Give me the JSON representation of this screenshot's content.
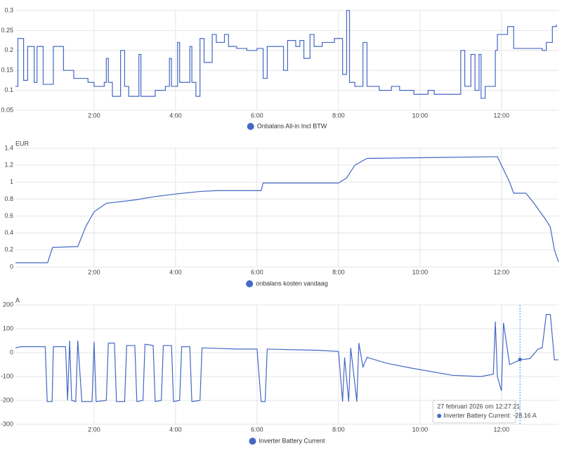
{
  "chart_data": [
    {
      "type": "line",
      "step": true,
      "grid": true,
      "x": [
        0.07,
        0.13,
        0.27,
        0.37,
        0.53,
        0.6,
        0.75,
        1.0,
        1.25,
        1.5,
        1.85,
        2.0,
        2.25,
        2.3,
        2.35,
        2.45,
        2.65,
        2.75,
        2.85,
        3.1,
        3.15,
        3.3,
        3.5,
        3.75,
        3.85,
        3.9,
        4.05,
        4.1,
        4.35,
        4.4,
        4.5,
        4.6,
        4.7,
        4.9,
        5.0,
        5.2,
        5.3,
        5.5,
        5.75,
        6.0,
        6.15,
        6.25,
        6.5,
        6.65,
        6.75,
        6.95,
        7.05,
        7.15,
        7.3,
        7.4,
        7.6,
        7.75,
        7.9,
        8.1,
        8.2,
        8.27,
        8.4,
        8.6,
        8.7,
        9.0,
        9.3,
        9.5,
        9.7,
        9.85,
        10.2,
        10.35,
        10.6,
        10.9,
        11.0,
        11.1,
        11.25,
        11.35,
        11.45,
        11.5,
        11.6,
        11.85,
        11.9,
        12.15,
        12.3,
        13.0,
        13.1,
        13.25,
        13.35
      ],
      "xlim": [
        0.07,
        13.4
      ],
      "xticks": [
        {
          "value": 2,
          "label": "2:00"
        },
        {
          "value": 4,
          "label": "4:00"
        },
        {
          "value": 6,
          "label": "6:00"
        },
        {
          "value": 8,
          "label": "8:00"
        },
        {
          "value": 10,
          "label": "10:00"
        },
        {
          "value": 12,
          "label": "12:00"
        }
      ],
      "ylim": [
        0.05,
        0.3
      ],
      "yticks": [
        0.05,
        0.1,
        0.15,
        0.2,
        0.25,
        0.3
      ],
      "series": [
        {
          "name": "Onbalans All-in Incl BTW",
          "color": "#4468c4",
          "values": [
            0.11,
            0.23,
            0.125,
            0.21,
            0.12,
            0.21,
            0.115,
            0.21,
            0.15,
            0.13,
            0.12,
            0.11,
            0.12,
            0.18,
            0.12,
            0.085,
            0.2,
            0.11,
            0.085,
            0.19,
            0.085,
            0.085,
            0.1,
            0.11,
            0.18,
            0.11,
            0.22,
            0.12,
            0.21,
            0.12,
            0.085,
            0.23,
            0.17,
            0.24,
            0.22,
            0.24,
            0.21,
            0.205,
            0.2,
            0.205,
            0.13,
            0.21,
            0.21,
            0.15,
            0.225,
            0.21,
            0.225,
            0.18,
            0.24,
            0.21,
            0.22,
            0.22,
            0.23,
            0.14,
            0.3,
            0.12,
            0.11,
            0.22,
            0.11,
            0.1,
            0.11,
            0.1,
            0.1,
            0.09,
            0.1,
            0.09,
            0.09,
            0.09,
            0.2,
            0.11,
            0.19,
            0.1,
            0.19,
            0.08,
            0.11,
            0.2,
            0.24,
            0.26,
            0.205,
            0.2,
            0.22,
            0.26,
            0.265
          ]
        }
      ]
    },
    {
      "type": "line",
      "grid": true,
      "y_unit": "EUR",
      "x": [
        0.07,
        0.86,
        0.98,
        1.6,
        1.8,
        2.0,
        2.3,
        3.0,
        3.5,
        4.0,
        4.6,
        5.0,
        6.1,
        6.15,
        8.0,
        8.2,
        8.4,
        8.7,
        11.9,
        12.2,
        12.3,
        12.6,
        12.8,
        13.1,
        13.2,
        13.3,
        13.4
      ],
      "xlim": [
        0.07,
        13.4
      ],
      "xticks": [
        {
          "value": 2,
          "label": "2:00"
        },
        {
          "value": 4,
          "label": "4:00"
        },
        {
          "value": 6,
          "label": "6:00"
        },
        {
          "value": 8,
          "label": "8:00"
        },
        {
          "value": 10,
          "label": "10:00"
        },
        {
          "value": 12,
          "label": "12:00"
        }
      ],
      "ylim": [
        0,
        1.4
      ],
      "yticks": [
        0,
        0.2,
        0.4,
        0.6,
        0.8,
        1,
        1.2,
        1.4
      ],
      "series": [
        {
          "name": "onbalans kosten vandaag",
          "color": "#4468c4",
          "values": [
            0.05,
            0.05,
            0.23,
            0.24,
            0.48,
            0.65,
            0.75,
            0.79,
            0.83,
            0.86,
            0.89,
            0.9,
            0.9,
            0.99,
            0.99,
            1.05,
            1.2,
            1.28,
            1.3,
            1.0,
            0.87,
            0.87,
            0.75,
            0.55,
            0.47,
            0.2,
            0.06
          ]
        }
      ]
    },
    {
      "type": "line",
      "grid": true,
      "y_unit": "A",
      "x": [
        0.07,
        0.2,
        0.8,
        0.85,
        0.97,
        1.0,
        1.3,
        1.35,
        1.4,
        1.45,
        1.55,
        1.6,
        1.7,
        1.95,
        2.0,
        2.05,
        2.3,
        2.35,
        2.5,
        2.55,
        2.75,
        2.8,
        3.0,
        3.05,
        3.2,
        3.25,
        3.45,
        3.5,
        3.65,
        3.7,
        3.9,
        3.95,
        4.1,
        4.15,
        4.35,
        4.4,
        4.6,
        4.65,
        5.5,
        6.0,
        6.1,
        6.2,
        6.25,
        7.5,
        8.0,
        8.1,
        8.15,
        8.25,
        8.3,
        8.45,
        8.5,
        8.6,
        8.7,
        9.2,
        9.8,
        10.3,
        10.8,
        11.5,
        11.8,
        11.85,
        11.9,
        12.0,
        12.05,
        12.2,
        12.46,
        12.7,
        12.9,
        13.0,
        13.1,
        13.2,
        13.3,
        13.4
      ],
      "xlim": [
        0.07,
        13.4
      ],
      "xticks": [
        {
          "value": 2,
          "label": "2:00"
        },
        {
          "value": 4,
          "label": "4:00"
        },
        {
          "value": 6,
          "label": "6:00"
        },
        {
          "value": 8,
          "label": "8:00"
        },
        {
          "value": 10,
          "label": "10:00"
        },
        {
          "value": 12,
          "label": "12:00"
        }
      ],
      "ylim": [
        -300,
        200
      ],
      "yticks": [
        -300,
        -200,
        -100,
        0,
        100,
        200
      ],
      "series": [
        {
          "name": "Inverter Battery Current",
          "color": "#4468c4",
          "values": [
            20,
            25,
            25,
            -205,
            -205,
            25,
            25,
            -200,
            50,
            -200,
            -205,
            50,
            -205,
            -205,
            45,
            -205,
            -200,
            40,
            40,
            -205,
            -205,
            30,
            30,
            -205,
            -200,
            35,
            30,
            -205,
            -200,
            30,
            30,
            -205,
            -200,
            25,
            25,
            -205,
            -200,
            20,
            15,
            15,
            -205,
            -205,
            15,
            10,
            5,
            -205,
            -20,
            -205,
            20,
            -205,
            40,
            -60,
            -20,
            -45,
            -65,
            -80,
            -95,
            -100,
            -90,
            130,
            -100,
            -160,
            125,
            -50,
            -30,
            -25,
            15,
            20,
            160,
            160,
            -30,
            -30
          ]
        }
      ],
      "tooltip": {
        "title": "27 februari 2026 om 12:27:21",
        "label": "Inverter Battery Current: -28.16 A",
        "x": 12.455,
        "value": -28.16
      }
    }
  ]
}
